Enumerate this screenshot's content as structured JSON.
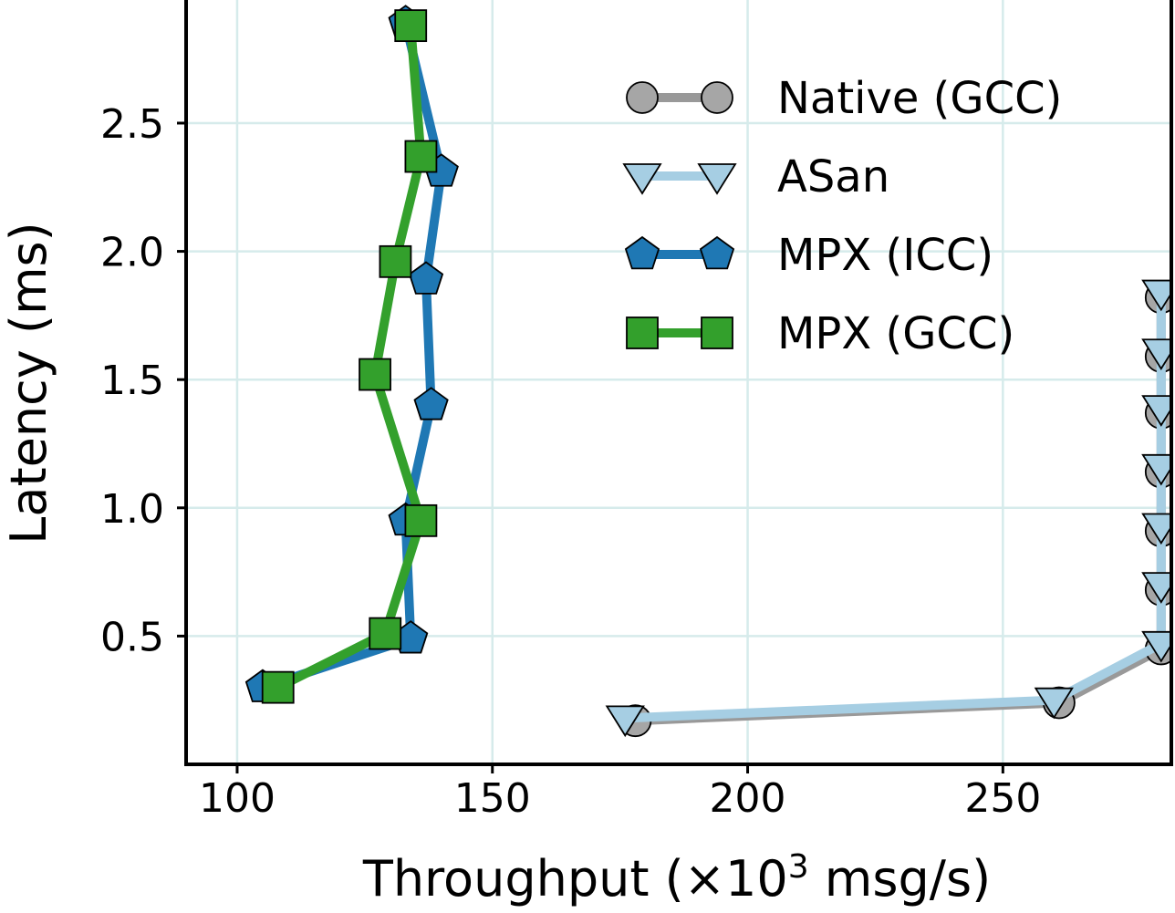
{
  "chart_data": {
    "type": "line",
    "xlabel": "Throughput (×10",
    "xlabel_sup": "3",
    "xlabel_suffix": " msg/s)",
    "ylabel": "Latency (ms)",
    "xlim": [
      90,
      283
    ],
    "ylim": [
      0.0,
      2.98
    ],
    "xticks": [
      100,
      150,
      200,
      250
    ],
    "yticks": [
      0.5,
      1.0,
      1.5,
      2.0,
      2.5
    ],
    "xtick_labels": [
      "100",
      "150",
      "200",
      "250"
    ],
    "ytick_labels": [
      "0.5",
      "1.0",
      "1.5",
      "2.0",
      "2.5"
    ],
    "grid": true,
    "legend_position": "top-right",
    "series": [
      {
        "name": "Native (GCC)",
        "marker": "circle",
        "line_color": "#999999",
        "marker_fill": "#a6a6a6",
        "points": [
          [
            178,
            0.17
          ],
          [
            261,
            0.24
          ],
          [
            281,
            0.45
          ],
          [
            281,
            0.68
          ],
          [
            281,
            0.91
          ],
          [
            281,
            1.14
          ],
          [
            281,
            1.37
          ],
          [
            281,
            1.59
          ],
          [
            281,
            1.82
          ]
        ]
      },
      {
        "name": "ASan",
        "marker": "triangle-down",
        "line_color": "#a6cee3",
        "marker_fill": "#a6cee3",
        "points": [
          [
            176,
            0.18
          ],
          [
            260,
            0.25
          ],
          [
            281,
            0.47
          ],
          [
            281,
            0.7
          ],
          [
            281,
            0.93
          ],
          [
            281,
            1.16
          ],
          [
            281,
            1.39
          ],
          [
            281,
            1.61
          ],
          [
            281,
            1.84
          ]
        ]
      },
      {
        "name": "MPX (ICC)",
        "marker": "pentagon",
        "line_color": "#1f78b4",
        "marker_fill": "#1f78b4",
        "points": [
          [
            105,
            0.3
          ],
          [
            134,
            0.49
          ],
          [
            133,
            0.95
          ],
          [
            138,
            1.4
          ],
          [
            137,
            1.89
          ],
          [
            140,
            2.31
          ],
          [
            133,
            2.89
          ]
        ]
      },
      {
        "name": "MPX (GCC)",
        "marker": "square",
        "line_color": "#33a02c",
        "marker_fill": "#33a02c",
        "points": [
          [
            108,
            0.3
          ],
          [
            129,
            0.51
          ],
          [
            136,
            0.95
          ],
          [
            127,
            1.52
          ],
          [
            131,
            1.96
          ],
          [
            136,
            2.37
          ],
          [
            134,
            2.88
          ]
        ]
      }
    ]
  }
}
